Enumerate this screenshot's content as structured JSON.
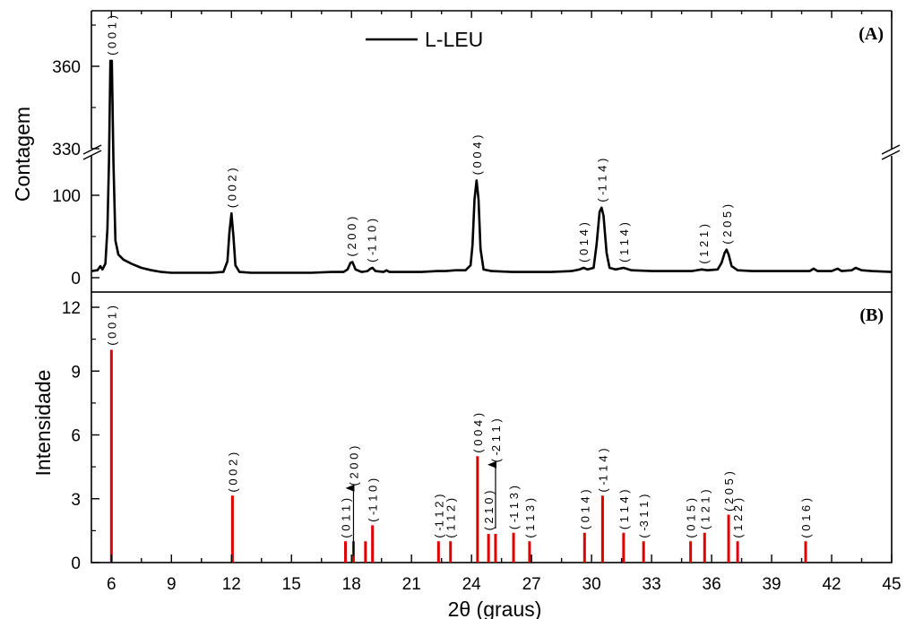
{
  "chart_data": [
    {
      "panel": "(A)",
      "type": "line",
      "ylabel": "Contagem",
      "legend": {
        "label": "L-LEU",
        "position": "top-center"
      },
      "xlim": [
        5,
        45
      ],
      "y_axis_break": {
        "lower": [
          0,
          155
        ],
        "upper": [
          330,
          380
        ]
      },
      "y_ticks": [
        "0",
        "100",
        "330",
        "360"
      ],
      "grid": false,
      "series": [
        {
          "name": "L-LEU",
          "color": "#000000",
          "points": [
            [
              5.0,
              8
            ],
            [
              5.3,
              9
            ],
            [
              5.45,
              14
            ],
            [
              5.55,
              10
            ],
            [
              5.7,
              17
            ],
            [
              5.8,
              60
            ],
            [
              5.88,
              140
            ],
            [
              5.95,
              362
            ],
            [
              6.02,
              362
            ],
            [
              6.1,
              140
            ],
            [
              6.2,
              45
            ],
            [
              6.35,
              28
            ],
            [
              6.6,
              22
            ],
            [
              7.0,
              17
            ],
            [
              7.5,
              12
            ],
            [
              8.0,
              9
            ],
            [
              8.5,
              7
            ],
            [
              9.0,
              6
            ],
            [
              10.0,
              6
            ],
            [
              11.0,
              6
            ],
            [
              11.6,
              7
            ],
            [
              11.8,
              20
            ],
            [
              11.9,
              55
            ],
            [
              12.0,
              78
            ],
            [
              12.1,
              50
            ],
            [
              12.2,
              15
            ],
            [
              12.4,
              7
            ],
            [
              13.0,
              6
            ],
            [
              14.0,
              6
            ],
            [
              15.0,
              6
            ],
            [
              16.0,
              6
            ],
            [
              17.0,
              7
            ],
            [
              17.6,
              7
            ],
            [
              17.8,
              10
            ],
            [
              17.95,
              18
            ],
            [
              18.05,
              19
            ],
            [
              18.2,
              10
            ],
            [
              18.5,
              7
            ],
            [
              18.8,
              8
            ],
            [
              18.95,
              11
            ],
            [
              19.05,
              12
            ],
            [
              19.2,
              8
            ],
            [
              19.6,
              7
            ],
            [
              19.75,
              9
            ],
            [
              19.9,
              7
            ],
            [
              20.5,
              7
            ],
            [
              21.5,
              7
            ],
            [
              22.3,
              8
            ],
            [
              22.7,
              8
            ],
            [
              23.2,
              9
            ],
            [
              23.7,
              9
            ],
            [
              23.95,
              15
            ],
            [
              24.05,
              40
            ],
            [
              24.15,
              95
            ],
            [
              24.25,
              118
            ],
            [
              24.35,
              95
            ],
            [
              24.45,
              35
            ],
            [
              24.6,
              10
            ],
            [
              25.0,
              8
            ],
            [
              26.0,
              7
            ],
            [
              27.0,
              7
            ],
            [
              28.0,
              7
            ],
            [
              29.0,
              8
            ],
            [
              29.4,
              10
            ],
            [
              29.6,
              12
            ],
            [
              29.8,
              10
            ],
            [
              30.1,
              12
            ],
            [
              30.25,
              40
            ],
            [
              30.4,
              80
            ],
            [
              30.5,
              85
            ],
            [
              30.6,
              75
            ],
            [
              30.75,
              30
            ],
            [
              30.9,
              12
            ],
            [
              31.2,
              10
            ],
            [
              31.6,
              12
            ],
            [
              32.0,
              9
            ],
            [
              33.0,
              8
            ],
            [
              34.0,
              8
            ],
            [
              35.0,
              8
            ],
            [
              35.5,
              10
            ],
            [
              35.8,
              9
            ],
            [
              36.3,
              10
            ],
            [
              36.5,
              18
            ],
            [
              36.65,
              30
            ],
            [
              36.75,
              34
            ],
            [
              36.85,
              28
            ],
            [
              37.0,
              14
            ],
            [
              37.3,
              9
            ],
            [
              38.0,
              8
            ],
            [
              39.0,
              8
            ],
            [
              40.0,
              8
            ],
            [
              40.9,
              8
            ],
            [
              41.1,
              11
            ],
            [
              41.3,
              8
            ],
            [
              42.0,
              8
            ],
            [
              42.3,
              11
            ],
            [
              42.5,
              8
            ],
            [
              43.0,
              9
            ],
            [
              43.2,
              12
            ],
            [
              43.5,
              9
            ],
            [
              44.0,
              8
            ],
            [
              45.0,
              7
            ]
          ]
        }
      ],
      "annotations": [
        {
          "text": "( 0 0 1 )",
          "x": 6.0,
          "y": 362
        },
        {
          "text": "( 0 0 2 )",
          "x": 12.0,
          "y": 78
        },
        {
          "text": "( 2 0 0 )",
          "x": 18.0,
          "y": 19
        },
        {
          "text": "( -1 1 0 )",
          "x": 19.0,
          "y": 12
        },
        {
          "text": "( 0 0 4 )",
          "x": 24.25,
          "y": 118
        },
        {
          "text": "( 0 1 4 )",
          "x": 29.6,
          "y": 12
        },
        {
          "text": "( -1 1 4 )",
          "x": 30.5,
          "y": 85
        },
        {
          "text": "( 1 1 4 )",
          "x": 31.6,
          "y": 12
        },
        {
          "text": "( 1 2 1 )",
          "x": 35.6,
          "y": 10
        },
        {
          "text": "( 2 0 5 )",
          "x": 36.75,
          "y": 34
        }
      ]
    },
    {
      "panel": "(B)",
      "type": "bar",
      "ylabel": "Intensidade",
      "xlabel": "2θ (graus)",
      "xlim": [
        5,
        45
      ],
      "ylim": [
        0,
        12
      ],
      "x_ticks": [
        "6",
        "9",
        "12",
        "15",
        "18",
        "21",
        "24",
        "27",
        "30",
        "33",
        "36",
        "39",
        "42",
        "45"
      ],
      "y_ticks": [
        "0",
        "3",
        "6",
        "9",
        "12"
      ],
      "grid": false,
      "bar_color": "#e00000",
      "bars": [
        {
          "x": 6.0,
          "value": 10,
          "label": "( 0 0 1 )"
        },
        {
          "x": 12.05,
          "value": 3.15,
          "label": "( 0 0 2 )"
        },
        {
          "x": 17.7,
          "value": 1.0,
          "label": "( 0 1 1 )"
        },
        {
          "x": 18.1,
          "value": 1.0,
          "label": "( 2 0 0 )"
        },
        {
          "x": 18.7,
          "value": 1.0,
          "label": ""
        },
        {
          "x": 19.05,
          "value": 1.75,
          "label": "( -1 1 0 )"
        },
        {
          "x": 22.35,
          "value": 1.0,
          "label": "( -1 1 2 )"
        },
        {
          "x": 22.95,
          "value": 1.0,
          "label": "( 1 1 2 )"
        },
        {
          "x": 24.3,
          "value": 5.0,
          "label": "( 0 0 4 )"
        },
        {
          "x": 24.85,
          "value": 1.35,
          "label": "( 2 1 0 )"
        },
        {
          "x": 25.2,
          "value": 1.35,
          "label": "( -2 1 1 )"
        },
        {
          "x": 26.1,
          "value": 1.4,
          "label": "( -1 1 3 )"
        },
        {
          "x": 26.9,
          "value": 1.0,
          "label": "( 1 1 3 )"
        },
        {
          "x": 29.65,
          "value": 1.4,
          "label": "( 0 1 4 )"
        },
        {
          "x": 30.55,
          "value": 3.15,
          "label": "( -1 1 4 )"
        },
        {
          "x": 31.6,
          "value": 1.4,
          "label": "( 1 1 4 )"
        },
        {
          "x": 32.6,
          "value": 1.0,
          "label": "( -3 1 1 )"
        },
        {
          "x": 34.95,
          "value": 1.0,
          "label": "( 0 1 5 )"
        },
        {
          "x": 35.65,
          "value": 1.4,
          "label": "( 1 2 1 )"
        },
        {
          "x": 36.85,
          "value": 2.25,
          "label": "( 2 0 5 )"
        },
        {
          "x": 37.3,
          "value": 1.0,
          "label": "( 1 2 2 )"
        },
        {
          "x": 40.7,
          "value": 1.0,
          "label": "( 0 1 6 )"
        }
      ],
      "arrows": [
        {
          "x": 18.1,
          "from": 0.3,
          "to": 3.5,
          "points_to": "( 2 0 0 )"
        },
        {
          "x": 25.2,
          "from": 1.6,
          "to": 4.6,
          "points_to": "( -2 1 1 )"
        }
      ]
    }
  ]
}
